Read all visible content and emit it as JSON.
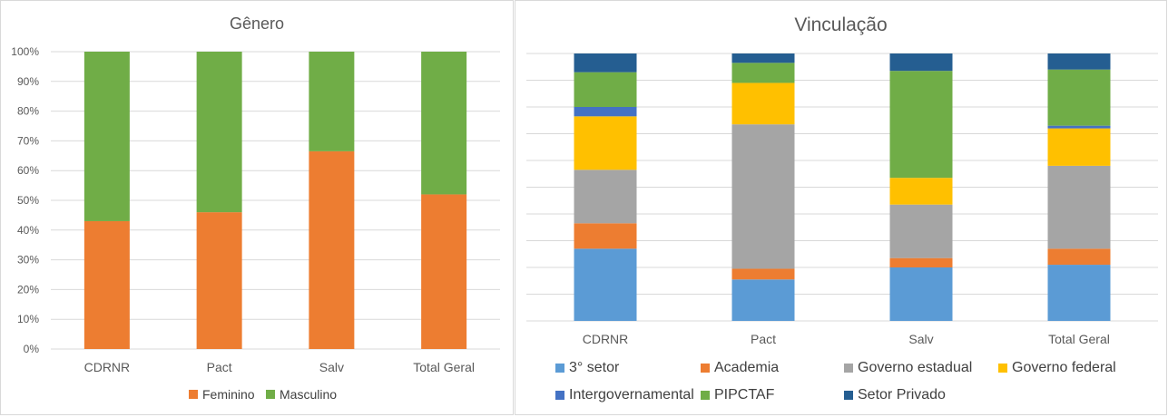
{
  "chart_data": [
    {
      "type": "bar",
      "stacked": "percent",
      "title": "Gênero",
      "categories": [
        "CDRNR",
        "Pact",
        "Salv",
        "Total Geral"
      ],
      "yticks": [
        "0%",
        "10%",
        "20%",
        "30%",
        "40%",
        "50%",
        "60%",
        "70%",
        "80%",
        "90%",
        "100%"
      ],
      "ylim": [
        0,
        1
      ],
      "series": [
        {
          "name": "Feminino",
          "color": "#ED7D31",
          "values": [
            0.43,
            0.46,
            0.665,
            0.52
          ]
        },
        {
          "name": "Masculino",
          "color": "#70AD47",
          "values": [
            0.57,
            0.54,
            0.335,
            0.48
          ]
        }
      ],
      "legend": "bottom"
    },
    {
      "type": "bar",
      "stacked": "percent",
      "title": "Vinculação",
      "categories": [
        "CDRNR",
        "Pact",
        "Salv",
        "Total Geral"
      ],
      "ylim": [
        0,
        1
      ],
      "series": [
        {
          "name": "3° setor",
          "color": "#5B9BD5",
          "values": [
            0.27,
            0.155,
            0.2,
            0.21
          ]
        },
        {
          "name": "Academia",
          "color": "#ED7D31",
          "values": [
            0.095,
            0.04,
            0.035,
            0.06
          ]
        },
        {
          "name": "Governo estadual",
          "color": "#A5A5A5",
          "values": [
            0.2,
            0.54,
            0.2,
            0.31
          ]
        },
        {
          "name": "Governo federal",
          "color": "#FFC000",
          "values": [
            0.2,
            0.155,
            0.1,
            0.14
          ]
        },
        {
          "name": "Intergovernamental",
          "color": "#4472C4",
          "values": [
            0.035,
            0.0,
            0.0,
            0.01
          ]
        },
        {
          "name": "PIPCTAF",
          "color": "#70AD47",
          "values": [
            0.13,
            0.075,
            0.4,
            0.21
          ]
        },
        {
          "name": "Setor Privado",
          "color": "#255E91",
          "values": [
            0.07,
            0.035,
            0.065,
            0.06
          ]
        }
      ],
      "legend": "bottom"
    }
  ]
}
